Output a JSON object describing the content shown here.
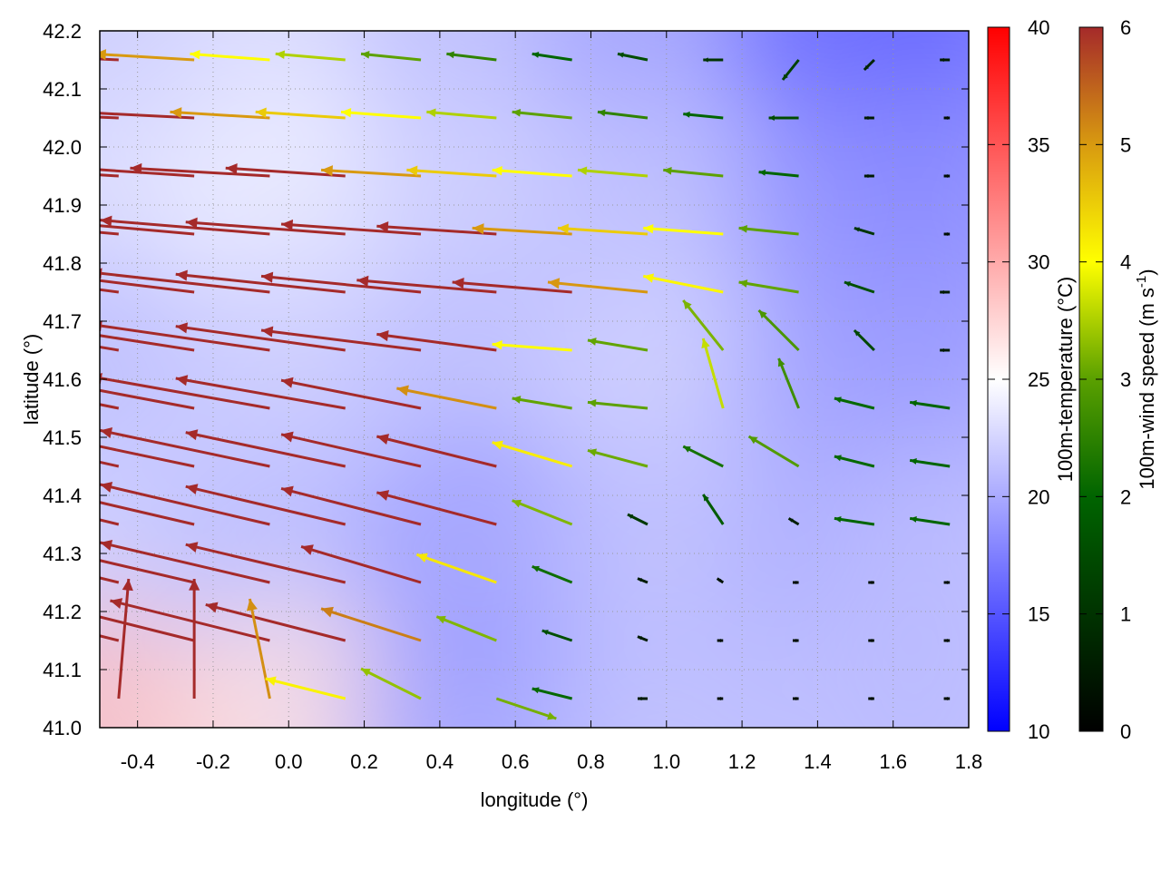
{
  "chart_data": {
    "type": "heatmap",
    "overlay": "vector-field",
    "xlabel": "longitude (°)",
    "ylabel": "latitude (°)",
    "xlim": [
      -0.5,
      1.8
    ],
    "ylim": [
      41.0,
      42.2
    ],
    "xticks": [
      "-0.4",
      "-0.2",
      "0.0",
      "0.2",
      "0.4",
      "0.6",
      "0.8",
      "1.0",
      "1.2",
      "1.4",
      "1.6",
      "1.8"
    ],
    "yticks": [
      "41.0",
      "41.1",
      "41.2",
      "41.3",
      "41.4",
      "41.5",
      "41.6",
      "41.7",
      "41.8",
      "41.9",
      "42.0",
      "42.1",
      "42.2"
    ],
    "grid": true,
    "temperature_colorbar": {
      "label": "100m-temperature (°C)",
      "range": [
        10,
        40
      ],
      "ticks": [
        "10",
        "15",
        "20",
        "25",
        "30",
        "35",
        "40"
      ],
      "colors": {
        "low": "#0000ff",
        "mid": "#ffffff",
        "high": "#ff0000"
      }
    },
    "wind_colorbar": {
      "label": "100m-wind speed (m s",
      "label_sup": "-1",
      "label_end": ")",
      "range": [
        0,
        6
      ],
      "ticks": [
        "0",
        "1",
        "2",
        "3",
        "4",
        "5",
        "6"
      ],
      "colors": [
        "#000000",
        "#003300",
        "#006400",
        "#5aa000",
        "#ffff00",
        "#d89a10",
        "#a52a2a"
      ]
    },
    "temperature_field": {
      "lon": [
        -0.5,
        0.0,
        0.5,
        1.0,
        1.5,
        1.8
      ],
      "lat": [
        42.2,
        41.9,
        41.6,
        41.3,
        41.0
      ],
      "values": [
        [
          22,
          23,
          21,
          19,
          15,
          16
        ],
        [
          23,
          24,
          22,
          21,
          18,
          18
        ],
        [
          21,
          22,
          21,
          22,
          19,
          19
        ],
        [
          22,
          21,
          19,
          21,
          20,
          21
        ],
        [
          29,
          27,
          19,
          21,
          21,
          21
        ]
      ]
    },
    "wind_field": {
      "lon": [
        -0.45,
        -0.25,
        -0.05,
        0.15,
        0.35,
        0.55,
        0.75,
        0.95,
        1.15,
        1.35,
        1.55,
        1.75
      ],
      "lat": [
        42.15,
        42.05,
        41.95,
        41.85,
        41.75,
        41.65,
        41.55,
        41.45,
        41.35,
        41.25,
        41.15,
        41.05
      ],
      "u": [
        [
          -6,
          -5,
          -4,
          -3.5,
          -3,
          -2.5,
          -2,
          -1.5,
          -1,
          -0.8,
          -0.5,
          -0.5
        ],
        [
          -7,
          -6,
          -5,
          -4.5,
          -4,
          -3.5,
          -3,
          -2.5,
          -2,
          -1.5,
          -0.5,
          -0.3
        ],
        [
          -8,
          -7.5,
          -7,
          -6,
          -5,
          -4.5,
          -4,
          -3.5,
          -3,
          -2,
          -0.5,
          -0.3
        ],
        [
          -9,
          -9,
          -8.5,
          -8,
          -7,
          -6,
          -5,
          -4.5,
          -4,
          -3,
          -1,
          -0.3
        ],
        [
          -9,
          -9,
          -9,
          -8.5,
          -8,
          -7,
          -6,
          -5,
          -4,
          -3,
          -1.5,
          -0.5
        ],
        [
          -9,
          -9,
          -9,
          -8.5,
          -8,
          -6,
          -4,
          -3,
          -2,
          -2,
          -1,
          -0.5
        ],
        [
          -9,
          -9,
          -9,
          -8.5,
          -7,
          -5,
          -3,
          -3,
          -1,
          -1,
          -2,
          -2
        ],
        [
          -9,
          -9,
          -8.5,
          -8,
          -7,
          -6,
          -4,
          -3,
          -2,
          -2.5,
          -2,
          -2
        ],
        [
          -9,
          -9,
          -8.5,
          -8,
          -7,
          -6,
          -3,
          -1,
          -1,
          -0.5,
          -2,
          -2
        ],
        [
          -9,
          -9,
          -8.5,
          -8,
          -6,
          -4,
          -2,
          -0.5,
          -0.3,
          -0.3,
          -0.3,
          -0.3
        ],
        [
          -8,
          -8,
          -8,
          -7,
          -5,
          -3,
          -1.5,
          -0.5,
          -0.3,
          -0.3,
          -0.3,
          -0.3
        ],
        [
          0.5,
          0,
          -1,
          -4,
          -3,
          3,
          -2,
          -0.5,
          -0.3,
          -0.3,
          -0.3,
          -0.3
        ]
      ],
      "v": [
        [
          0.3,
          0.3,
          0.3,
          0.3,
          0.3,
          0.3,
          0.3,
          0.3,
          0,
          -1,
          -0.5,
          0
        ],
        [
          0.3,
          0.3,
          0.3,
          0.3,
          0.3,
          0.3,
          0.3,
          0.3,
          0.2,
          0,
          0,
          0
        ],
        [
          0.5,
          0.5,
          0.4,
          0.4,
          0.3,
          0.3,
          0.3,
          0.3,
          0.3,
          0.2,
          0,
          0
        ],
        [
          0.8,
          0.8,
          0.7,
          0.6,
          0.5,
          0.4,
          0.3,
          0.3,
          0.3,
          0.3,
          0.3,
          0
        ],
        [
          1.2,
          1.1,
          1,
          0.9,
          0.8,
          0.6,
          0.5,
          0.5,
          0.8,
          0.5,
          0.5,
          0
        ],
        [
          1.5,
          1.4,
          1.3,
          1.2,
          1,
          0.8,
          0.3,
          0.5,
          2.5,
          2,
          1,
          0
        ],
        [
          1.8,
          1.7,
          1.6,
          1.5,
          1.4,
          1,
          0.5,
          0.3,
          3.5,
          2.5,
          0.5,
          0.3
        ],
        [
          2,
          1.9,
          1.8,
          1.7,
          1.6,
          1.5,
          1.2,
          0.8,
          1,
          1.5,
          0.5,
          0.3
        ],
        [
          2.2,
          2.1,
          2,
          1.9,
          1.8,
          1.6,
          1.2,
          0.5,
          1.5,
          0.3,
          0.3,
          0.3
        ],
        [
          2.2,
          2.1,
          2,
          1.9,
          1.8,
          1.4,
          0.8,
          0.2,
          0.2,
          0,
          0,
          0
        ],
        [
          2,
          2,
          2,
          1.8,
          1.6,
          1.2,
          0.5,
          0.2,
          0,
          0,
          0,
          0
        ],
        [
          6,
          6,
          5,
          1,
          1.5,
          -1,
          0.5,
          0,
          0,
          0,
          0,
          0
        ]
      ]
    }
  }
}
